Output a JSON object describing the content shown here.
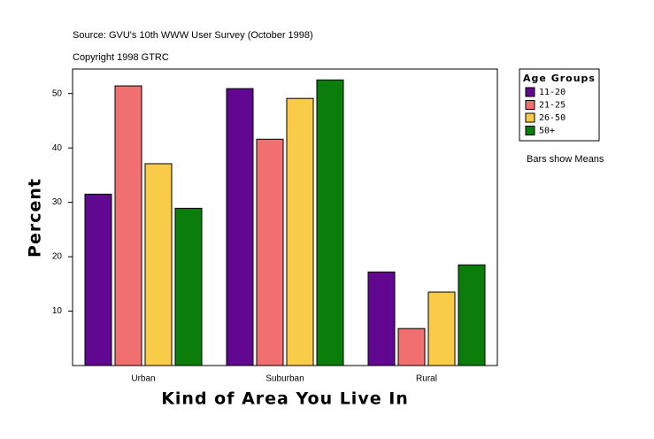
{
  "chart_data": {
    "type": "bar",
    "source": "Source: GVU's 10th WWW User Survey (October 1998)",
    "copyright": "Copyright 1998 GTRC",
    "xlabel": "Kind of Area You Live In",
    "ylabel": "Percent",
    "legend_title": "Age Groups",
    "note": "Bars show Means",
    "categories": [
      "Urban",
      "Suburban",
      "Rural"
    ],
    "series": [
      {
        "name": "11-20",
        "color": "#62078f",
        "values": [
          31.5,
          50.9,
          17.2
        ]
      },
      {
        "name": "21-25",
        "color": "#f07070",
        "values": [
          51.4,
          41.6,
          6.8
        ]
      },
      {
        "name": "26-50",
        "color": "#f8cc48",
        "values": [
          37.1,
          49.1,
          13.5
        ]
      },
      {
        "name": "50+",
        "color": "#0b7d0b",
        "values": [
          28.9,
          52.5,
          18.5
        ]
      }
    ],
    "ylim": [
      0,
      54.5
    ],
    "yticks": [
      10,
      20,
      30,
      40,
      50
    ],
    "grid": false
  }
}
